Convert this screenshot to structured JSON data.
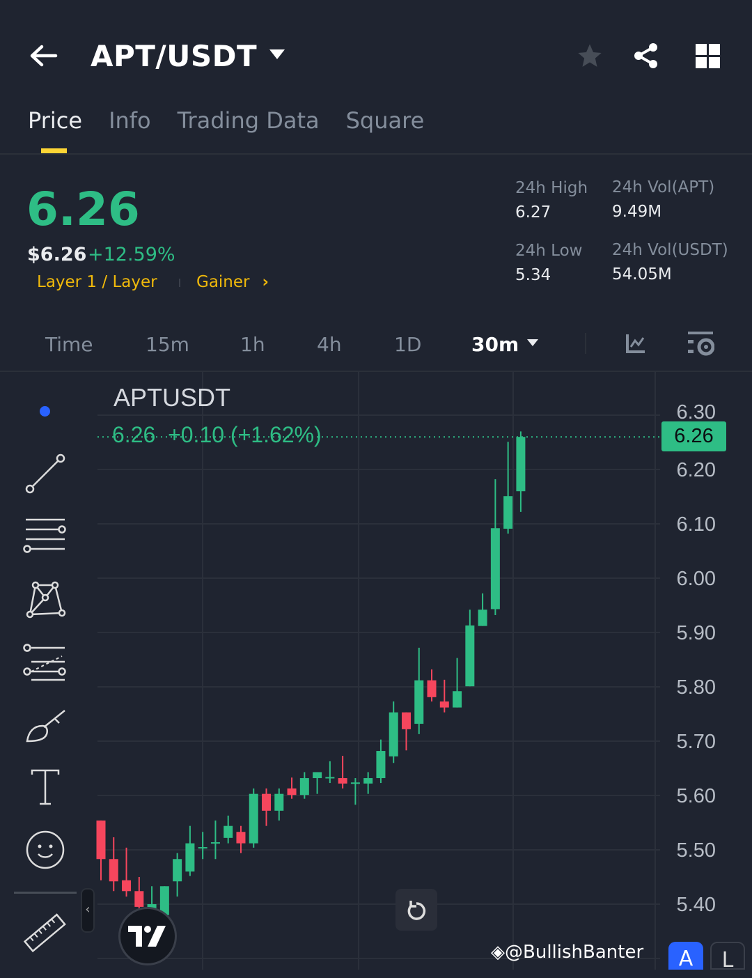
{
  "header": {
    "title": "APT/USDT",
    "icons": [
      "back-arrow-icon",
      "star-icon",
      "share-icon",
      "grid-icon"
    ]
  },
  "tabs": [
    {
      "label": "Price",
      "active": true
    },
    {
      "label": "Info"
    },
    {
      "label": "Trading Data"
    },
    {
      "label": "Square"
    }
  ],
  "ticker": {
    "last_price": "6.26",
    "fiat_price": "$6.26",
    "change_pct": "+12.59%",
    "tag_category": "Layer 1 / Layer",
    "tag_gainer": "Gainer",
    "stats": {
      "high_label": "24h High",
      "high": "6.27",
      "low_label": "24h Low",
      "low": "5.34",
      "vol_base_label": "24h Vol(APT)",
      "vol_base": "9.49M",
      "vol_quote_label": "24h Vol(USDT)",
      "vol_quote": "54.05M"
    }
  },
  "intervals": {
    "items": [
      "Time",
      "15m",
      "1h",
      "4h",
      "1D"
    ],
    "selected": "30m"
  },
  "chart": {
    "symbol": "APTUSDT",
    "legend": "6.26  +0.10 (+1.62%)",
    "last_price_badge": "6.26",
    "watermark": "@BullishBanter",
    "colors": {
      "up": "#2ebd85",
      "down": "#f6465d",
      "background": "#1f2430",
      "drawing_dot": "#2962ff"
    }
  },
  "chart_data": {
    "type": "candlestick",
    "interval": "30m",
    "y_ticks": [
      "6.30",
      "6.20",
      "6.10",
      "6.00",
      "5.90",
      "5.80",
      "5.70",
      "5.60",
      "5.50",
      "5.40"
    ],
    "ylim": [
      5.28,
      6.33
    ],
    "last_price": 6.26,
    "ohlc": [
      [
        5.554,
        5.554,
        5.444,
        5.483
      ],
      [
        5.483,
        5.523,
        5.424,
        5.442
      ],
      [
        5.444,
        5.504,
        5.414,
        5.424
      ],
      [
        5.424,
        5.45,
        5.38,
        5.395
      ],
      [
        5.39,
        5.433,
        5.37,
        5.4
      ],
      [
        5.38,
        5.433,
        5.37,
        5.433
      ],
      [
        5.442,
        5.494,
        5.414,
        5.483
      ],
      [
        5.46,
        5.544,
        5.452,
        5.512
      ],
      [
        5.503,
        5.533,
        5.483,
        5.505
      ],
      [
        5.512,
        5.554,
        5.483,
        5.514
      ],
      [
        5.522,
        5.563,
        5.512,
        5.544
      ],
      [
        5.533,
        5.544,
        5.494,
        5.512
      ],
      [
        5.512,
        5.613,
        5.504,
        5.603
      ],
      [
        5.603,
        5.613,
        5.544,
        5.572
      ],
      [
        5.572,
        5.613,
        5.554,
        5.603
      ],
      [
        5.613,
        5.633,
        5.594,
        5.601
      ],
      [
        5.601,
        5.643,
        5.594,
        5.632
      ],
      [
        5.632,
        5.643,
        5.603,
        5.643
      ],
      [
        5.633,
        5.663,
        5.623,
        5.634
      ],
      [
        5.632,
        5.673,
        5.613,
        5.622
      ],
      [
        5.623,
        5.632,
        5.583,
        5.624
      ],
      [
        5.622,
        5.643,
        5.603,
        5.632
      ],
      [
        5.632,
        5.703,
        5.623,
        5.682
      ],
      [
        5.672,
        5.773,
        5.66,
        5.753
      ],
      [
        5.753,
        5.753,
        5.683,
        5.722
      ],
      [
        5.732,
        5.872,
        5.713,
        5.812
      ],
      [
        5.812,
        5.832,
        5.773,
        5.781
      ],
      [
        5.773,
        5.813,
        5.753,
        5.762
      ],
      [
        5.762,
        5.853,
        5.762,
        5.792
      ],
      [
        5.801,
        5.942,
        5.801,
        5.913
      ],
      [
        5.912,
        5.972,
        5.912,
        5.942
      ],
      [
        5.943,
        6.182,
        5.932,
        6.092
      ],
      [
        6.091,
        6.251,
        6.082,
        6.151
      ],
      [
        6.16,
        6.27,
        6.122,
        6.26
      ]
    ]
  }
}
